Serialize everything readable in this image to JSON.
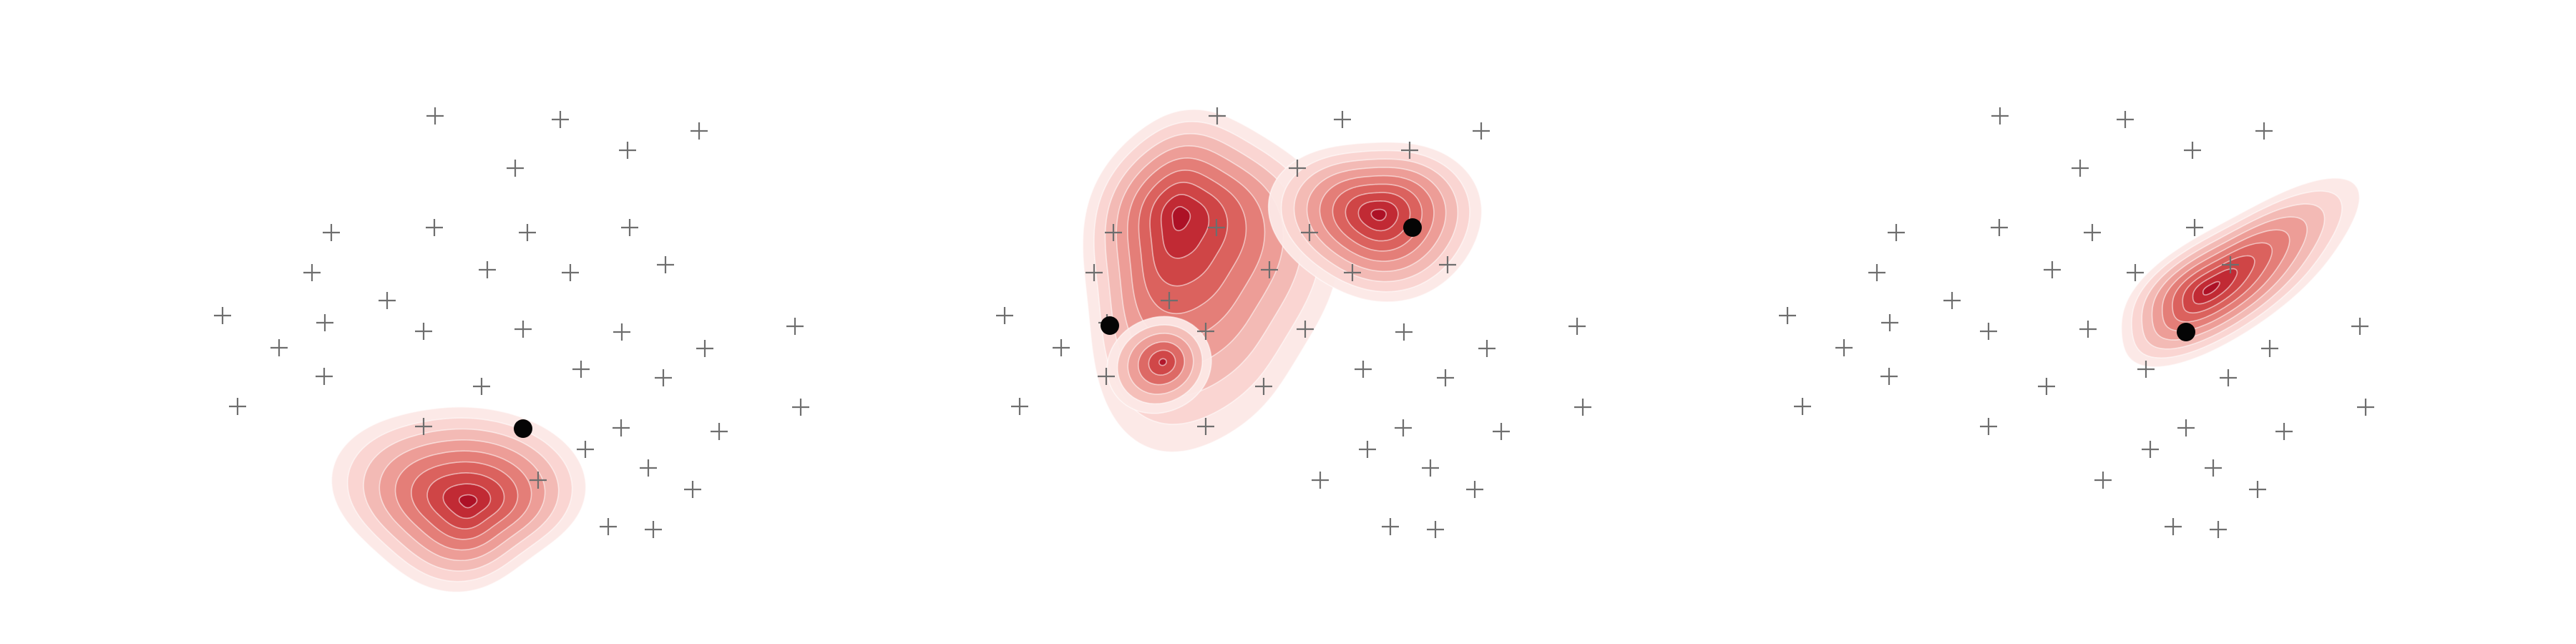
{
  "figure": {
    "panel_count": 3,
    "colors": {
      "background": "#ffffff",
      "cross": "#6e6e6e",
      "marker": "#050505",
      "density_ramp": [
        "#fce8e6",
        "#f8d0cc",
        "#f2b3ad",
        "#eb958e",
        "#e27670",
        "#d85a57",
        "#cc3d40",
        "#bd2230",
        "#a80a22"
      ]
    },
    "icons": {
      "sample_point": "plus-cross-icon",
      "query_point": "filled-dot-icon",
      "density": "kde-contour-blob"
    }
  }
}
